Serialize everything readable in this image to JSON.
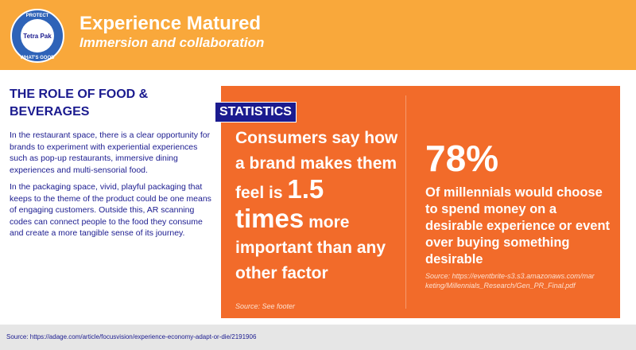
{
  "header": {
    "logo": {
      "top": "PROTECT",
      "brand": "Tetra Pak",
      "bottom": "WHAT'S GOOD"
    },
    "title": "Experience Matured",
    "subtitle": "Immersion and collaboration"
  },
  "left": {
    "heading": "THE ROLE OF FOOD & BEVERAGES",
    "paragraphs": [
      "In the restaurant space, there is a clear opportunity for brands to experiment with experiential experiences such as pop-up restaurants, immersive dining experiences and multi-sensorial food.",
      "In the packaging space, vivid, playful packaging that keeps to the theme of the product could be one means of engaging customers. Outside this, AR scanning codes can connect people to the food they consume and create a more tangible sense of its journey."
    ]
  },
  "statistics": {
    "label": "STATISTICS",
    "stat1": {
      "lead": "Consumers say how a brand makes them feel",
      "pre": "is",
      "highlight": "1.5 times",
      "rest": "more important than any other factor",
      "source": "Source: See footer"
    },
    "stat2": {
      "figure": "78%",
      "text": "Of millennials would choose to spend money on a desirable experience or event over buying something desirable",
      "source": "Source: https://eventbrite-s3.s3.amazonaws.com/marketing/Millennials_Research/Gen_PR_Final.pdf"
    }
  },
  "footer": {
    "source": "Source: https://adage.com/article/focusvision/experience-economy-adapt-or-die/2191906"
  }
}
